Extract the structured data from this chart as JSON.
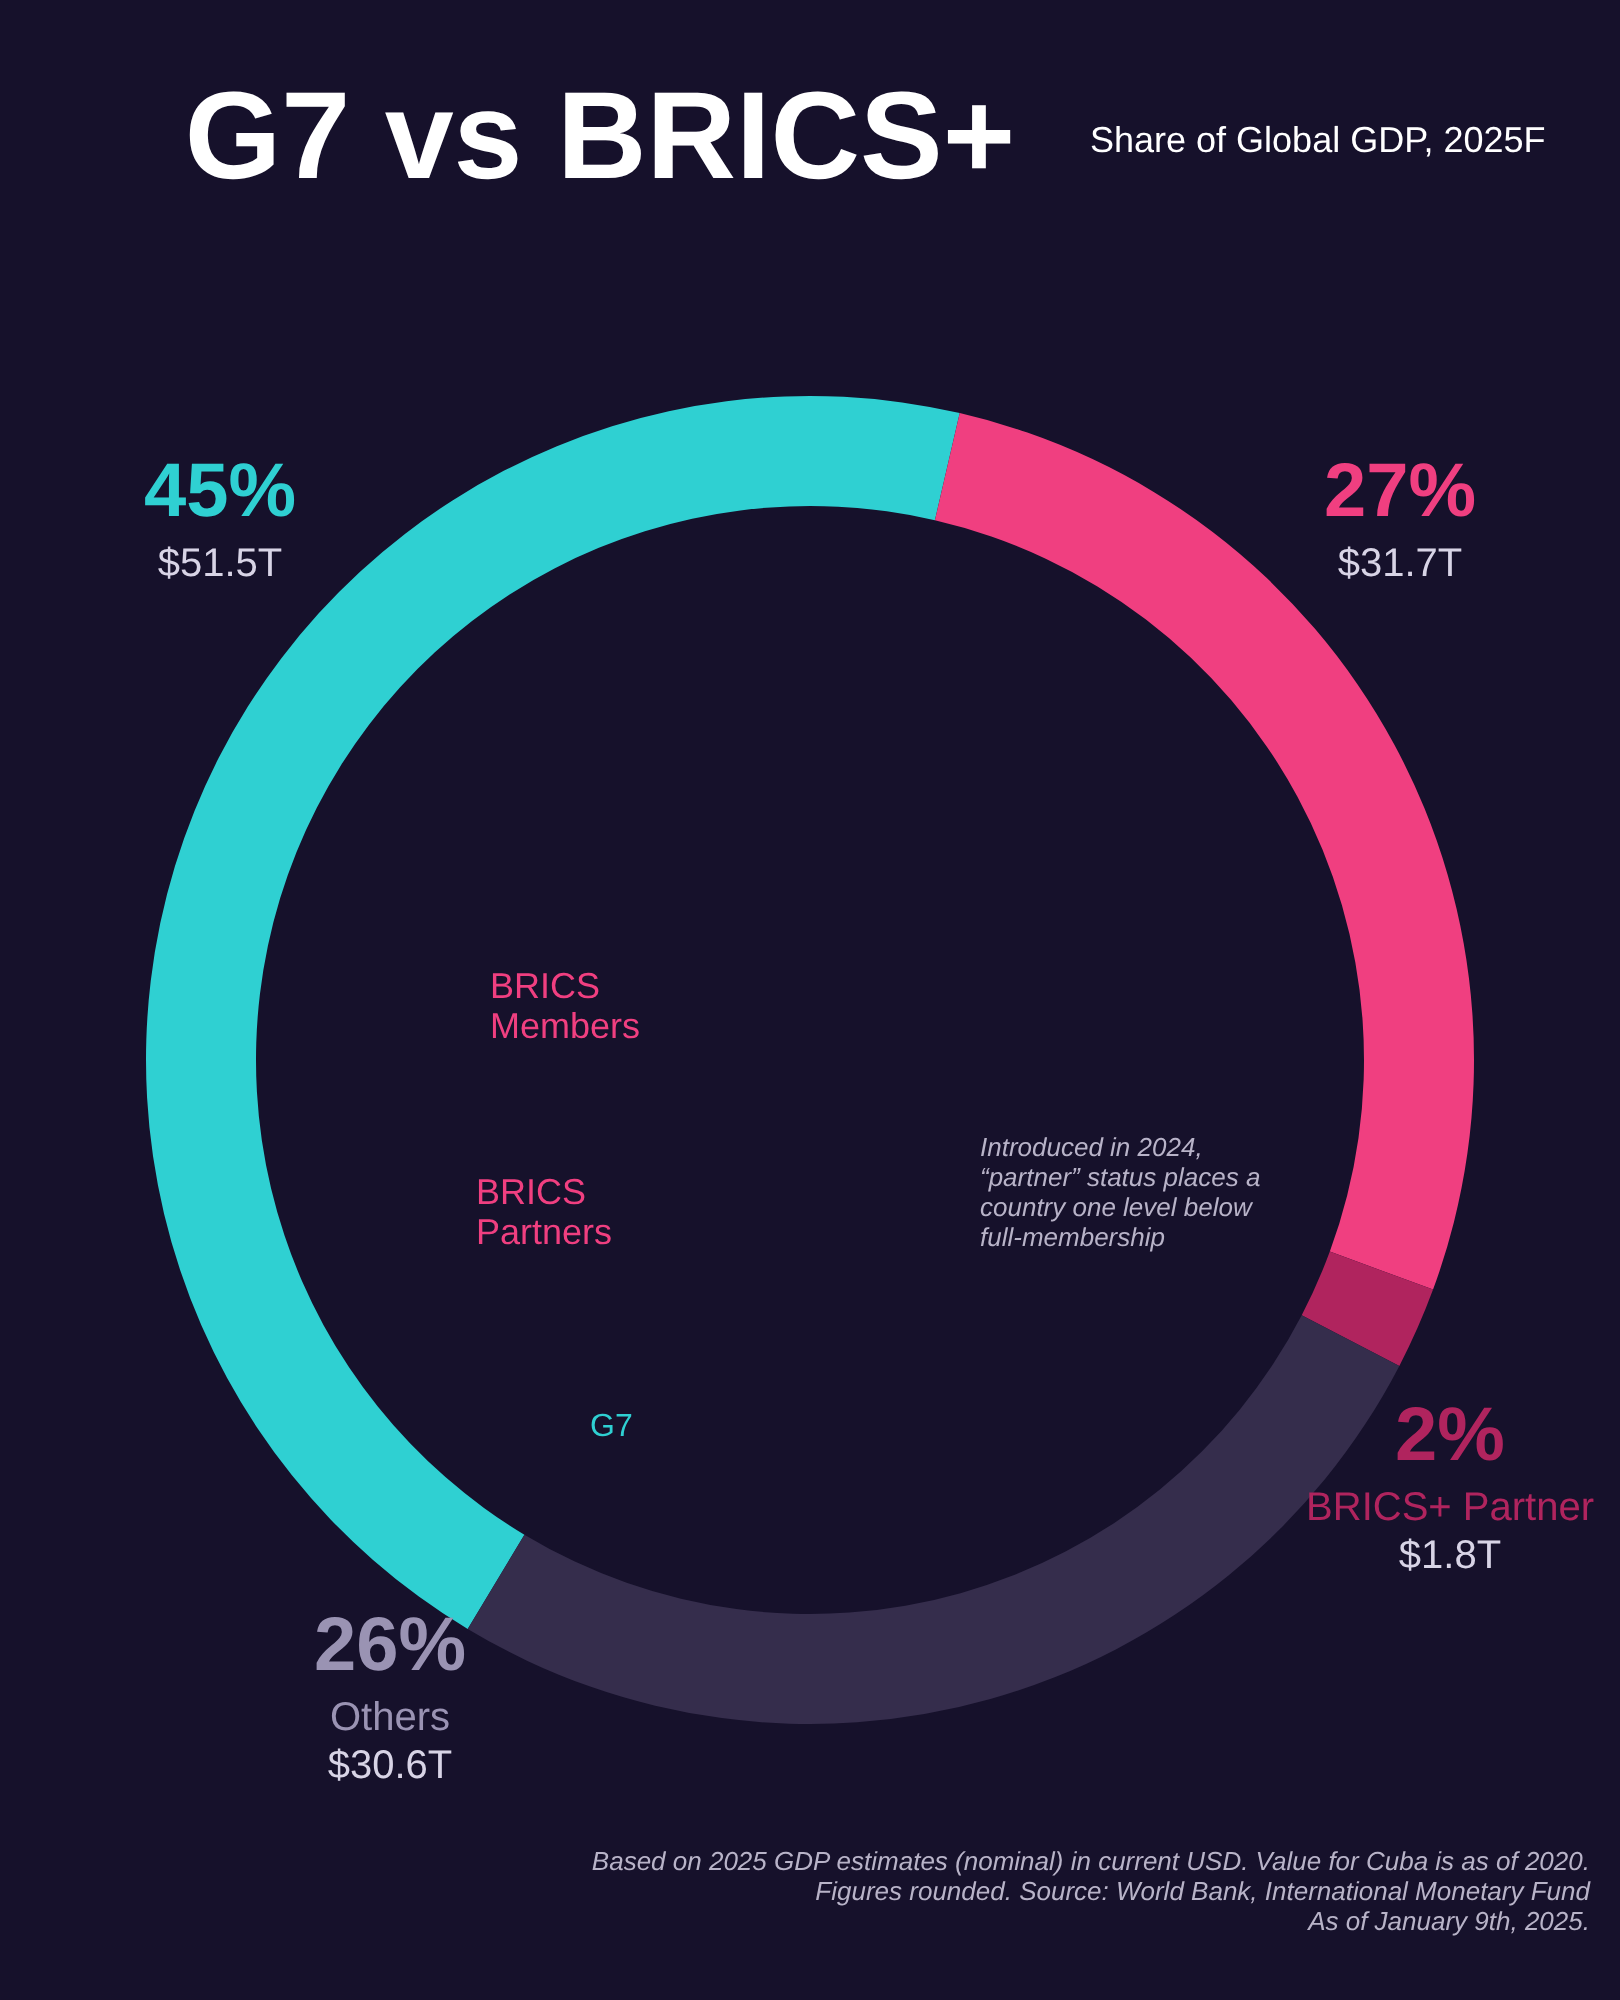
{
  "chart_data": {
    "type": "donut",
    "title": "G7 vs BRICS+",
    "subtitle": "Share of Global GDP, 2025F",
    "categories": [
      null,
      null,
      "BRICS+ Partner",
      "Others"
    ],
    "values": [
      45,
      27,
      2,
      26
    ],
    "colors": [
      "#2fd0d2",
      "#f03f80",
      "#b0245e",
      "#352d4c"
    ],
    "value_labels": [
      "45%",
      "27%",
      "2%",
      "26%"
    ],
    "legend": false,
    "annotations": [
      "$51.5T",
      "$31.7T",
      "$1.8T",
      "$30.6T",
      "BRICS\nMembers",
      "BRICS\nPartners",
      "G7",
      "Introduced in 2024,\n“partner” status places a\ncountry one level below\nfull-membership",
      "Based on 2025 GDP estimates (nominal) in current USD. Value for Cuba is as of 2020.\nFigures rounded. Source: World Bank, International Monetary Fund\nAs of January 9th, 2025."
    ]
  }
}
